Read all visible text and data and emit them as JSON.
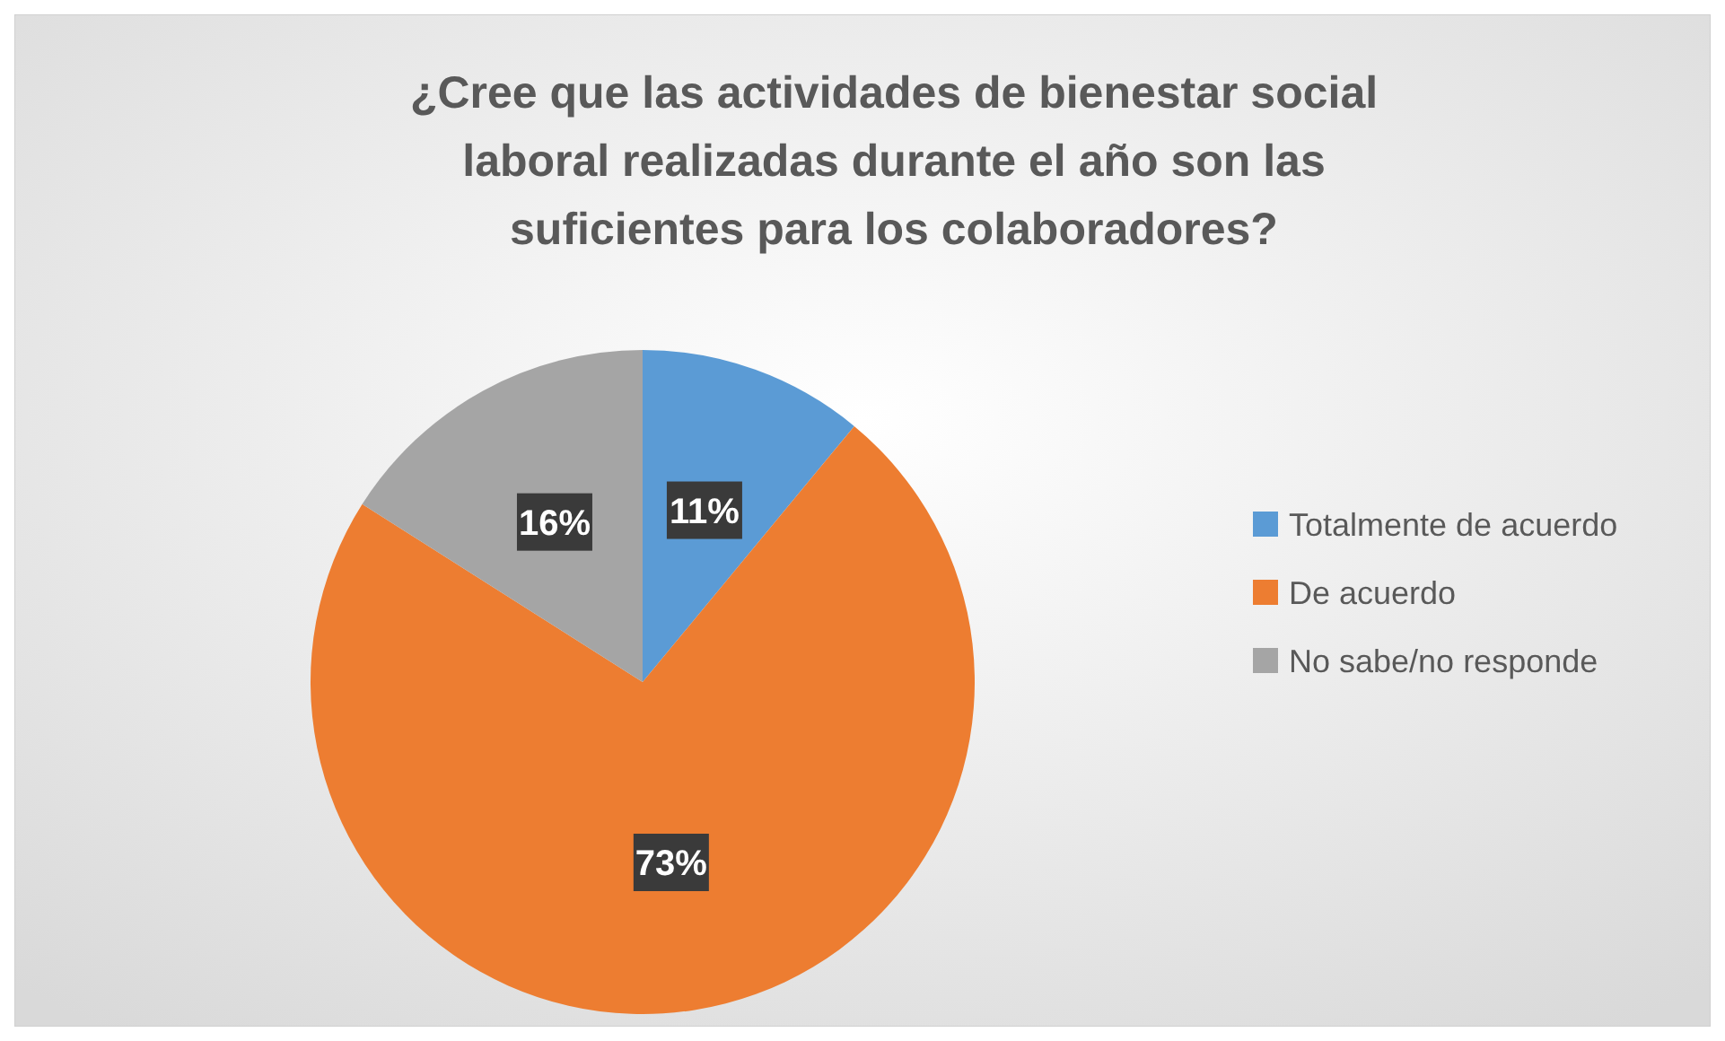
{
  "chart_data": {
    "type": "pie",
    "title": "¿Cree que las actividades de bienestar social laboral realizadas durante el año son las suficientes para los colaboradores?",
    "categories": [
      "Totalmente de acuerdo",
      "De acuerdo",
      "No sabe/no responde"
    ],
    "values": [
      11,
      73,
      16
    ],
    "colors": [
      "#5b9bd5",
      "#ed7d31",
      "#a5a5a5"
    ],
    "value_labels": [
      "11%",
      "73%",
      "16%"
    ],
    "legend": "right"
  }
}
